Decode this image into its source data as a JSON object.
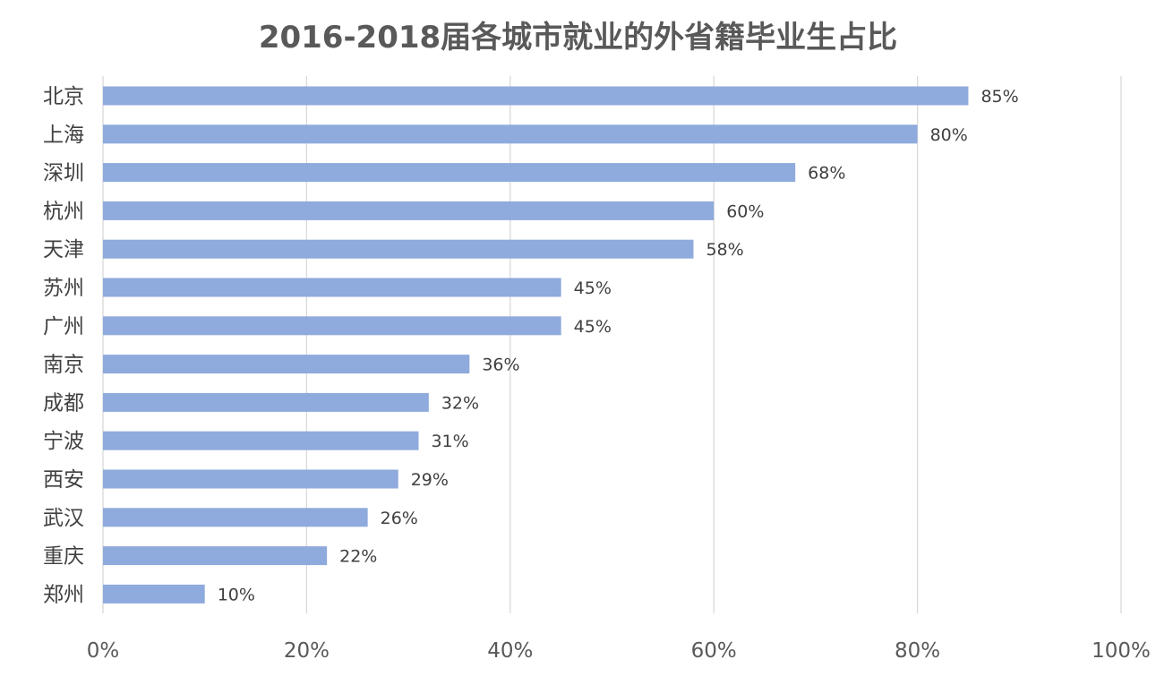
{
  "chart_data": {
    "type": "bar",
    "orientation": "horizontal",
    "title": "2016-2018届各城市就业的外省籍毕业生占比",
    "categories": [
      "北京",
      "上海",
      "深圳",
      "杭州",
      "天津",
      "苏州",
      "广州",
      "南京",
      "成都",
      "宁波",
      "西安",
      "武汉",
      "重庆",
      "郑州"
    ],
    "values": [
      85,
      80,
      68,
      60,
      58,
      45,
      45,
      36,
      32,
      31,
      29,
      26,
      22,
      10
    ],
    "data_labels": [
      "85%",
      "80%",
      "68%",
      "60%",
      "58%",
      "45%",
      "45%",
      "36%",
      "32%",
      "31%",
      "29%",
      "26%",
      "22%",
      "10%"
    ],
    "xlim": [
      0,
      100
    ],
    "x_ticks": [
      "0%",
      "20%",
      "40%",
      "60%",
      "80%",
      "100%"
    ],
    "x_tick_values": [
      0,
      20,
      40,
      60,
      80,
      100
    ],
    "grid": true,
    "legend": "none",
    "bar_color": "#8faadc",
    "grid_color": "#d9d9d9"
  }
}
